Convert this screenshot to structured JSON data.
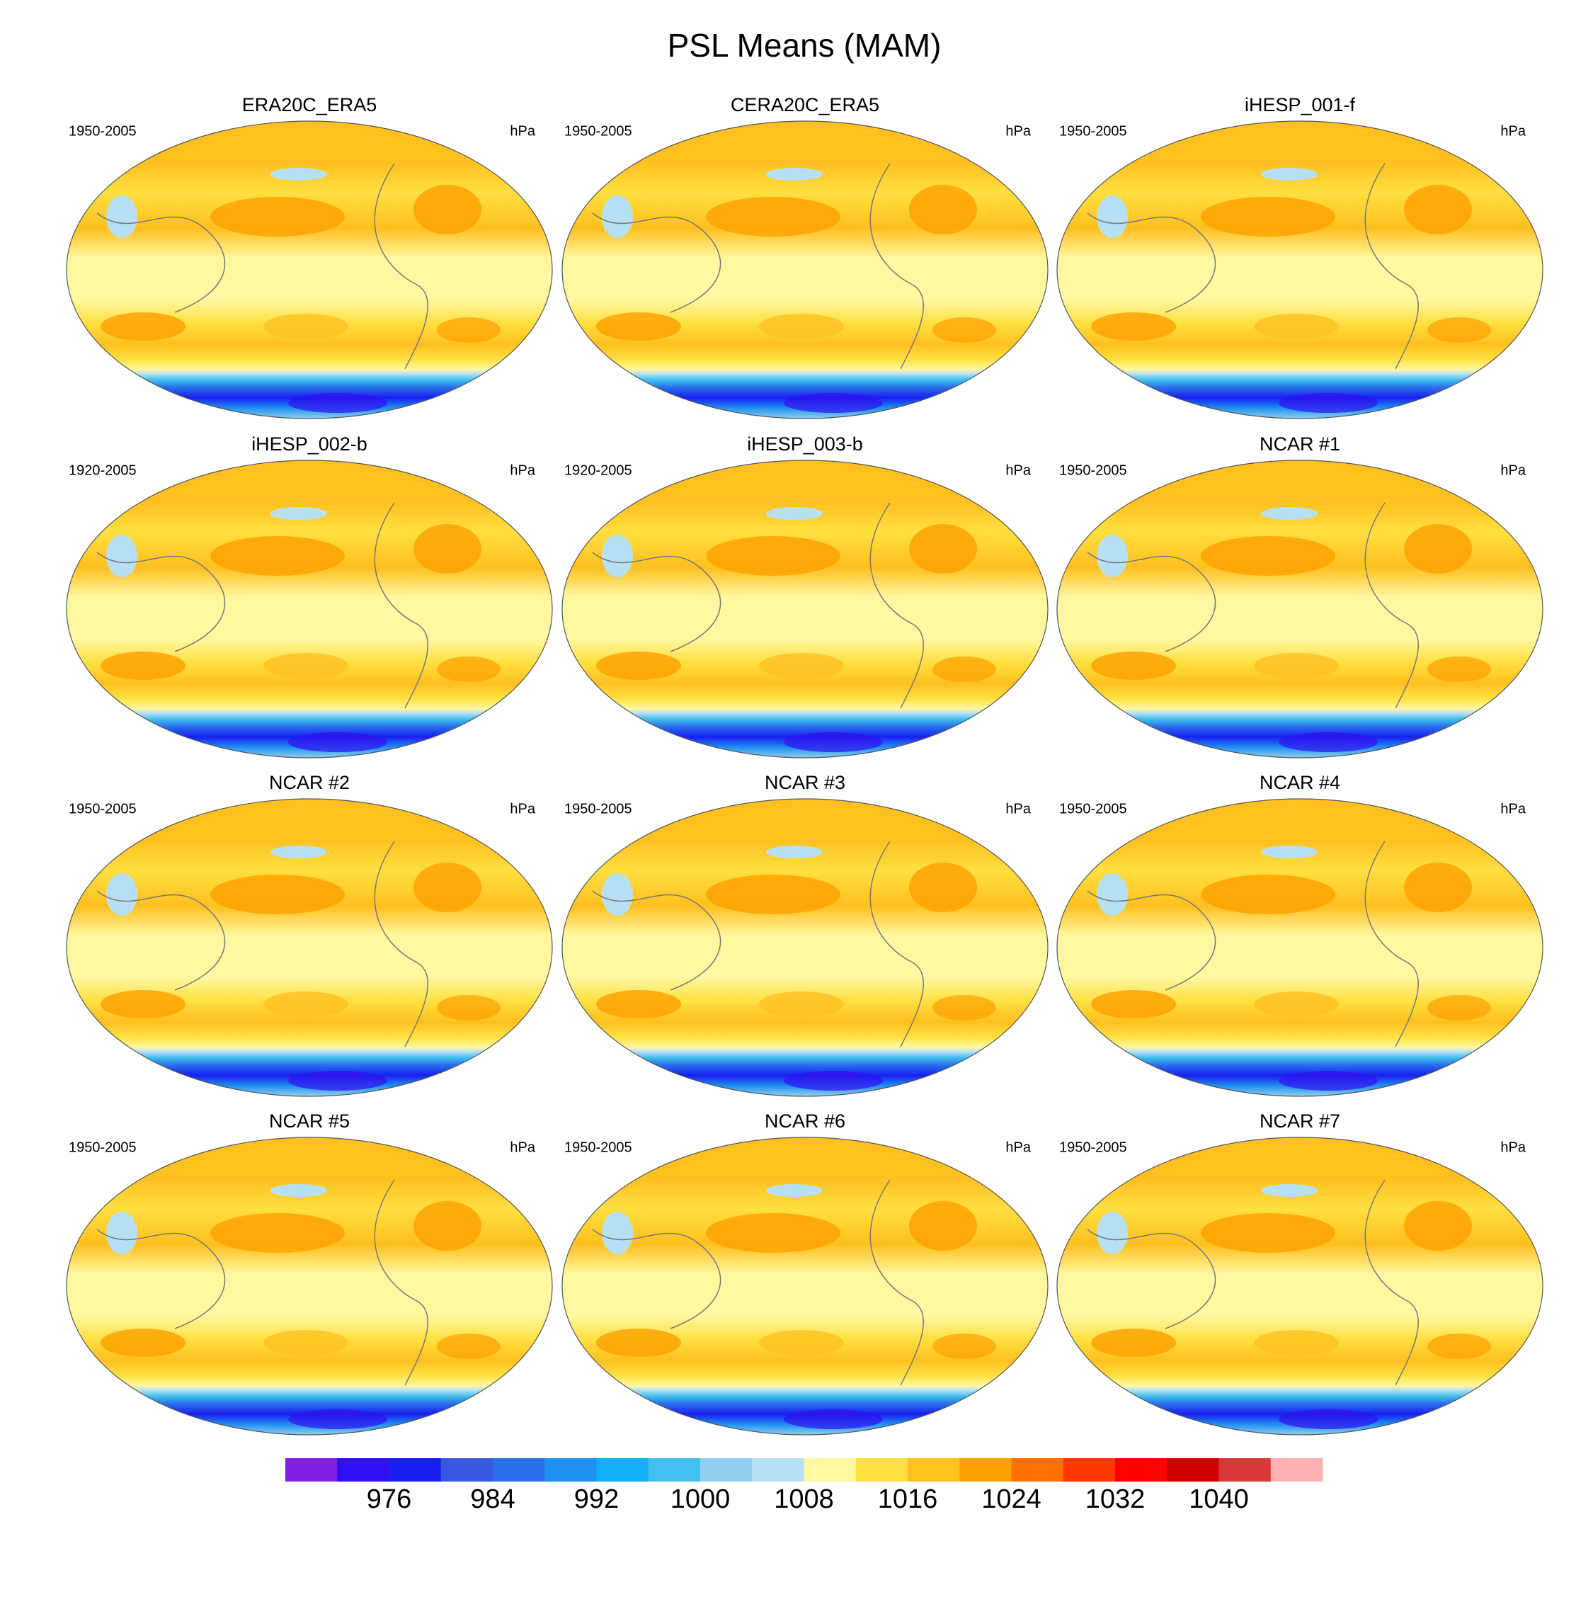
{
  "title": "PSL Means (MAM)",
  "panels": [
    {
      "title": "ERA20C_ERA5",
      "period": "1950-2005",
      "units": "hPa"
    },
    {
      "title": "CERA20C_ERA5",
      "period": "1950-2005",
      "units": "hPa"
    },
    {
      "title": "iHESP_001-f",
      "period": "1950-2005",
      "units": "hPa"
    },
    {
      "title": "iHESP_002-b",
      "period": "1920-2005",
      "units": "hPa"
    },
    {
      "title": "iHESP_003-b",
      "period": "1920-2005",
      "units": "hPa"
    },
    {
      "title": "NCAR #1",
      "period": "1950-2005",
      "units": "hPa"
    },
    {
      "title": "NCAR #2",
      "period": "1950-2005",
      "units": "hPa"
    },
    {
      "title": "NCAR #3",
      "period": "1950-2005",
      "units": "hPa"
    },
    {
      "title": "NCAR #4",
      "period": "1950-2005",
      "units": "hPa"
    },
    {
      "title": "NCAR #5",
      "period": "1950-2005",
      "units": "hPa"
    },
    {
      "title": "NCAR #6",
      "period": "1950-2005",
      "units": "hPa"
    },
    {
      "title": "NCAR #7",
      "period": "1950-2005",
      "units": "hPa"
    }
  ],
  "colorbar": {
    "lim": [
      968,
      1048
    ],
    "ticks": [
      976,
      984,
      992,
      1000,
      1008,
      1016,
      1024,
      1032,
      1040
    ],
    "colors": [
      "#8020e8",
      "#3010f0",
      "#1820f0",
      "#3858e0",
      "#2a70ec",
      "#2090f0",
      "#10b0f8",
      "#40c0f0",
      "#90d0ee",
      "#b8e0f4",
      "#fff8a0",
      "#ffe040",
      "#ffc020",
      "#ffa000",
      "#ff7000",
      "#ff3800",
      "#ff0000",
      "#d00000",
      "#d83838",
      "#ffb0b0"
    ]
  }
}
